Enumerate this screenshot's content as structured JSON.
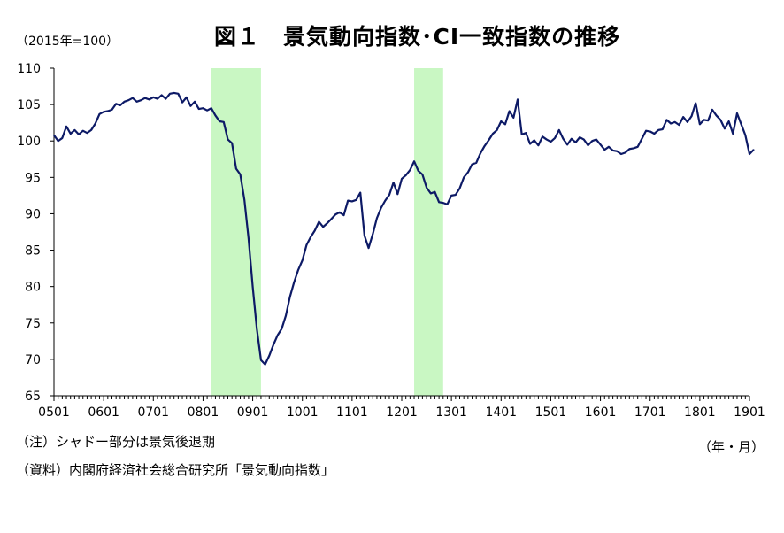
{
  "chart_data": {
    "type": "line",
    "title": "図１　景気動向指数･CI一致指数の推移",
    "unit_label": "（2015年=100）",
    "xunit_label": "（年・月）",
    "notes": [
      "（注）シャドー部分は景気後退期",
      "（資料）内閣府経済社会総合研究所「景気動向指数」"
    ],
    "ylim": [
      65,
      110
    ],
    "yticks": [
      65,
      70,
      75,
      80,
      85,
      90,
      95,
      100,
      105,
      110
    ],
    "xtick_labels": [
      "0501",
      "0601",
      "0701",
      "0801",
      "0901",
      "1001",
      "1101",
      "1201",
      "1301",
      "1401",
      "1501",
      "1601",
      "1701",
      "1801",
      "1901"
    ],
    "x_start": "2005-01",
    "x_end": "2019-01",
    "grid": false,
    "line_color": "#0d1a66",
    "shade_color": "#c9f7c3",
    "recessions": [
      {
        "start": "2008-03",
        "end": "2009-03"
      },
      {
        "start": "2012-04",
        "end": "2012-11"
      }
    ],
    "series": [
      {
        "name": "",
        "values": [
          [
            "2005-01",
            100.8
          ],
          [
            "2005-02",
            100.0
          ],
          [
            "2005-03",
            100.4
          ],
          [
            "2005-04",
            102.0
          ],
          [
            "2005-05",
            101.0
          ],
          [
            "2005-06",
            101.5
          ],
          [
            "2005-07",
            100.9
          ],
          [
            "2005-08",
            101.4
          ],
          [
            "2005-09",
            101.1
          ],
          [
            "2005-10",
            101.5
          ],
          [
            "2005-11",
            102.4
          ],
          [
            "2005-12",
            103.7
          ],
          [
            "2006-01",
            104.0
          ],
          [
            "2006-02",
            104.1
          ],
          [
            "2006-03",
            104.3
          ],
          [
            "2006-04",
            105.1
          ],
          [
            "2006-05",
            104.9
          ],
          [
            "2006-06",
            105.4
          ],
          [
            "2006-07",
            105.6
          ],
          [
            "2006-08",
            105.9
          ],
          [
            "2006-09",
            105.4
          ],
          [
            "2006-10",
            105.6
          ],
          [
            "2006-11",
            105.9
          ],
          [
            "2006-12",
            105.7
          ],
          [
            "2007-01",
            106.0
          ],
          [
            "2007-02",
            105.8
          ],
          [
            "2007-03",
            106.3
          ],
          [
            "2007-04",
            105.8
          ],
          [
            "2007-05",
            106.5
          ],
          [
            "2007-06",
            106.6
          ],
          [
            "2007-07",
            106.5
          ],
          [
            "2007-08",
            105.3
          ],
          [
            "2007-09",
            106.0
          ],
          [
            "2007-10",
            104.8
          ],
          [
            "2007-11",
            105.4
          ],
          [
            "2007-12",
            104.4
          ],
          [
            "2008-01",
            104.5
          ],
          [
            "2008-02",
            104.2
          ],
          [
            "2008-03",
            104.5
          ],
          [
            "2008-04",
            103.5
          ],
          [
            "2008-05",
            102.7
          ],
          [
            "2008-06",
            102.6
          ],
          [
            "2008-07",
            100.2
          ],
          [
            "2008-08",
            99.7
          ],
          [
            "2008-09",
            96.2
          ],
          [
            "2008-10",
            95.4
          ],
          [
            "2008-11",
            91.9
          ],
          [
            "2008-12",
            86.6
          ],
          [
            "2009-01",
            80.0
          ],
          [
            "2009-02",
            74.2
          ],
          [
            "2009-03",
            69.9
          ],
          [
            "2009-04",
            69.3
          ],
          [
            "2009-05",
            70.5
          ],
          [
            "2009-06",
            72.0
          ],
          [
            "2009-07",
            73.3
          ],
          [
            "2009-08",
            74.2
          ],
          [
            "2009-09",
            76.0
          ],
          [
            "2009-10",
            78.6
          ],
          [
            "2009-11",
            80.6
          ],
          [
            "2009-12",
            82.3
          ],
          [
            "2010-01",
            83.6
          ],
          [
            "2010-02",
            85.7
          ],
          [
            "2010-03",
            86.8
          ],
          [
            "2010-04",
            87.7
          ],
          [
            "2010-05",
            88.9
          ],
          [
            "2010-06",
            88.2
          ],
          [
            "2010-07",
            88.7
          ],
          [
            "2010-08",
            89.3
          ],
          [
            "2010-09",
            89.9
          ],
          [
            "2010-10",
            90.2
          ],
          [
            "2010-11",
            89.8
          ],
          [
            "2010-12",
            91.8
          ],
          [
            "2011-01",
            91.7
          ],
          [
            "2011-02",
            91.9
          ],
          [
            "2011-03",
            92.9
          ],
          [
            "2011-04",
            87.0
          ],
          [
            "2011-05",
            85.3
          ],
          [
            "2011-06",
            87.2
          ],
          [
            "2011-07",
            89.4
          ],
          [
            "2011-08",
            90.8
          ],
          [
            "2011-09",
            91.8
          ],
          [
            "2011-10",
            92.6
          ],
          [
            "2011-11",
            94.3
          ],
          [
            "2011-12",
            92.7
          ],
          [
            "2012-01",
            94.8
          ],
          [
            "2012-02",
            95.3
          ],
          [
            "2012-03",
            96.0
          ],
          [
            "2012-04",
            97.2
          ],
          [
            "2012-05",
            95.9
          ],
          [
            "2012-06",
            95.4
          ],
          [
            "2012-07",
            93.6
          ],
          [
            "2012-08",
            92.8
          ],
          [
            "2012-09",
            93.0
          ],
          [
            "2012-10",
            91.6
          ],
          [
            "2012-11",
            91.5
          ],
          [
            "2012-12",
            91.3
          ],
          [
            "2013-01",
            92.5
          ],
          [
            "2013-02",
            92.6
          ],
          [
            "2013-03",
            93.5
          ],
          [
            "2013-04",
            95.0
          ],
          [
            "2013-05",
            95.7
          ],
          [
            "2013-06",
            96.8
          ],
          [
            "2013-07",
            97.0
          ],
          [
            "2013-08",
            98.3
          ],
          [
            "2013-09",
            99.3
          ],
          [
            "2013-10",
            100.1
          ],
          [
            "2013-11",
            101.0
          ],
          [
            "2013-12",
            101.5
          ],
          [
            "2014-01",
            102.7
          ],
          [
            "2014-02",
            102.3
          ],
          [
            "2014-03",
            104.1
          ],
          [
            "2014-04",
            103.2
          ],
          [
            "2014-05",
            105.7
          ],
          [
            "2014-06",
            100.9
          ],
          [
            "2014-07",
            101.1
          ],
          [
            "2014-08",
            99.6
          ],
          [
            "2014-09",
            100.1
          ],
          [
            "2014-10",
            99.4
          ],
          [
            "2014-11",
            100.6
          ],
          [
            "2014-12",
            100.2
          ],
          [
            "2015-01",
            99.9
          ],
          [
            "2015-02",
            100.4
          ],
          [
            "2015-03",
            101.5
          ],
          [
            "2015-04",
            100.3
          ],
          [
            "2015-05",
            99.5
          ],
          [
            "2015-06",
            100.3
          ],
          [
            "2015-07",
            99.8
          ],
          [
            "2015-08",
            100.5
          ],
          [
            "2015-09",
            100.2
          ],
          [
            "2015-10",
            99.4
          ],
          [
            "2015-11",
            100.0
          ],
          [
            "2015-12",
            100.2
          ],
          [
            "2016-01",
            99.5
          ],
          [
            "2016-02",
            98.8
          ],
          [
            "2016-03",
            99.2
          ],
          [
            "2016-04",
            98.7
          ],
          [
            "2016-05",
            98.6
          ],
          [
            "2016-06",
            98.2
          ],
          [
            "2016-07",
            98.4
          ],
          [
            "2016-08",
            98.9
          ],
          [
            "2016-09",
            99.0
          ],
          [
            "2016-10",
            99.2
          ],
          [
            "2016-11",
            100.3
          ],
          [
            "2016-12",
            101.4
          ],
          [
            "2017-01",
            101.3
          ],
          [
            "2017-02",
            101.0
          ],
          [
            "2017-03",
            101.5
          ],
          [
            "2017-04",
            101.6
          ],
          [
            "2017-05",
            102.9
          ],
          [
            "2017-06",
            102.4
          ],
          [
            "2017-07",
            102.6
          ],
          [
            "2017-08",
            102.2
          ],
          [
            "2017-09",
            103.3
          ],
          [
            "2017-10",
            102.6
          ],
          [
            "2017-11",
            103.4
          ],
          [
            "2017-12",
            105.2
          ],
          [
            "2018-01",
            102.3
          ],
          [
            "2018-02",
            102.9
          ],
          [
            "2018-03",
            102.8
          ],
          [
            "2018-04",
            104.3
          ],
          [
            "2018-05",
            103.5
          ],
          [
            "2018-06",
            102.9
          ],
          [
            "2018-07",
            101.7
          ],
          [
            "2018-08",
            102.7
          ],
          [
            "2018-09",
            101.0
          ],
          [
            "2018-10",
            103.8
          ],
          [
            "2018-11",
            102.3
          ],
          [
            "2018-12",
            100.8
          ],
          [
            "2019-01",
            98.2
          ],
          [
            "2019-02",
            98.8
          ]
        ]
      }
    ]
  }
}
